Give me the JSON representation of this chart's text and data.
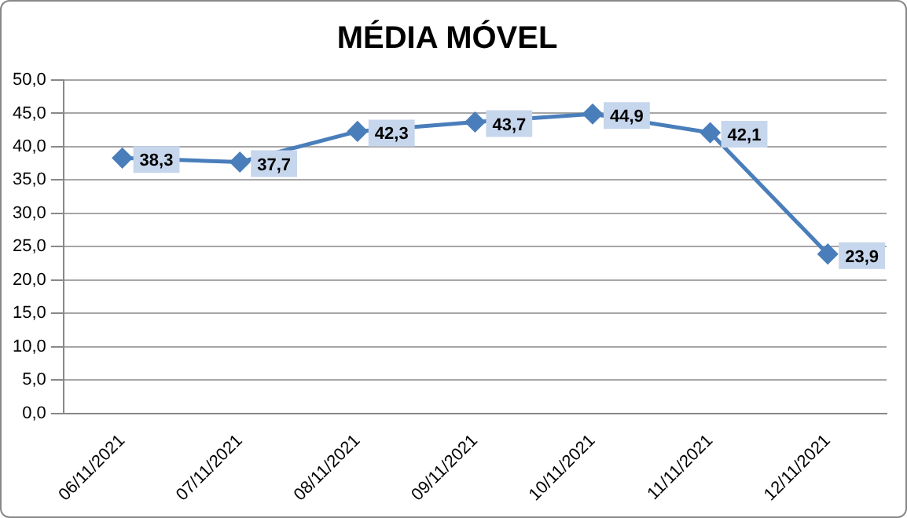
{
  "chart_data": {
    "type": "line",
    "title": "MÉDIA MÓVEL",
    "categories": [
      "06/11/2021",
      "07/11/2021",
      "08/11/2021",
      "09/11/2021",
      "10/11/2021",
      "11/11/2021",
      "12/11/2021"
    ],
    "series": [
      {
        "color": "#4a7ebb",
        "values": [
          38.3,
          37.7,
          42.3,
          43.7,
          44.9,
          42.1,
          23.9
        ],
        "value_labels": [
          "38,3",
          "37,7",
          "42,3",
          "43,7",
          "44,9",
          "42,1",
          "23,9"
        ]
      }
    ],
    "ylim": [
      0,
      50
    ],
    "yticks": [
      {
        "value": 0,
        "label": "0,0"
      },
      {
        "value": 5,
        "label": "5,0"
      },
      {
        "value": 10,
        "label": "10,0"
      },
      {
        "value": 15,
        "label": "15,0"
      },
      {
        "value": 20,
        "label": "20,0"
      },
      {
        "value": 25,
        "label": "25,0"
      },
      {
        "value": 30,
        "label": "30,0"
      },
      {
        "value": 35,
        "label": "35,0"
      },
      {
        "value": 40,
        "label": "40,0"
      },
      {
        "value": 45,
        "label": "45,0"
      },
      {
        "value": 50,
        "label": "50,0"
      }
    ],
    "grid": "y",
    "legend": false,
    "marker": "diamond",
    "line_style": "solid"
  }
}
